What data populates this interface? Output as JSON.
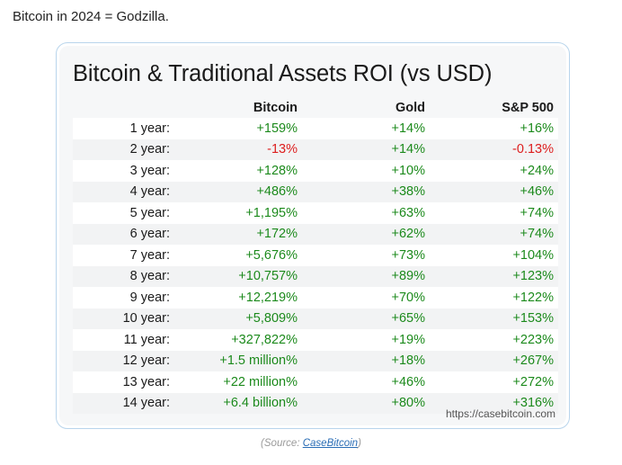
{
  "intro_text": "Bitcoin in 2024 = Godzilla.",
  "card": {
    "title": "Bitcoin & Traditional Assets ROI (vs USD)",
    "headers": [
      "",
      "Bitcoin",
      "Gold",
      "S&P 500"
    ],
    "rows": [
      {
        "period": "1 year:",
        "btc": "+159%",
        "gold": "+14%",
        "sp": "+16%"
      },
      {
        "period": "2 year:",
        "btc": "-13%",
        "gold": "+14%",
        "sp": "-0.13%"
      },
      {
        "period": "3 year:",
        "btc": "+128%",
        "gold": "+10%",
        "sp": "+24%"
      },
      {
        "period": "4 year:",
        "btc": "+486%",
        "gold": "+38%",
        "sp": "+46%"
      },
      {
        "period": "5 year:",
        "btc": "+1,195%",
        "gold": "+63%",
        "sp": "+74%"
      },
      {
        "period": "6 year:",
        "btc": "+172%",
        "gold": "+62%",
        "sp": "+74%"
      },
      {
        "period": "7 year:",
        "btc": "+5,676%",
        "gold": "+73%",
        "sp": "+104%"
      },
      {
        "period": "8 year:",
        "btc": "+10,757%",
        "gold": "+89%",
        "sp": "+123%"
      },
      {
        "period": "9 year:",
        "btc": "+12,219%",
        "gold": "+70%",
        "sp": "+122%"
      },
      {
        "period": "10 year:",
        "btc": "+5,809%",
        "gold": "+65%",
        "sp": "+153%"
      },
      {
        "period": "11 year:",
        "btc": "+327,822%",
        "gold": "+19%",
        "sp": "+223%"
      },
      {
        "period": "12 year:",
        "btc": "+1.5 million%",
        "gold": "+18%",
        "sp": "+267%"
      },
      {
        "period": "13 year:",
        "btc": "+22 million%",
        "gold": "+46%",
        "sp": "+272%"
      },
      {
        "period": "14 year:",
        "btc": "+6.4 billion%",
        "gold": "+80%",
        "sp": "+316%"
      }
    ],
    "source_url": "https://casebitcoin.com"
  },
  "caption": {
    "prefix": "(Source: ",
    "link_text": "CaseBitcoin",
    "suffix": ")"
  },
  "colors": {
    "positive": "#1c8a1c",
    "negative": "#dd1e1e",
    "card_border": "#b9d5ec",
    "link": "#2a6db5"
  }
}
